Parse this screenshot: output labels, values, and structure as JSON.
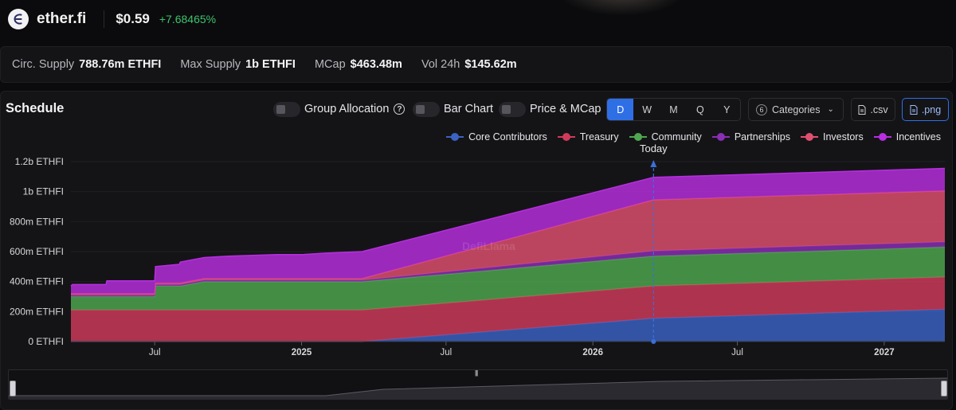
{
  "header": {
    "name": "ether.fi",
    "price": "$0.59",
    "change": "+7.68465%"
  },
  "stats": [
    {
      "label": "Circ. Supply",
      "value": "788.76m ETHFI"
    },
    {
      "label": "Max Supply",
      "value": "1b ETHFI"
    },
    {
      "label": "MCap",
      "value": "$463.48m"
    },
    {
      "label": "Vol 24h",
      "value": "$145.62m"
    }
  ],
  "controls": {
    "title": "Schedule",
    "group_allocation": "Group Allocation",
    "help_icon": "?",
    "bar_chart": "Bar Chart",
    "price_mcap": "Price & MCap",
    "periods": [
      "D",
      "W",
      "M",
      "Q",
      "Y"
    ],
    "active_period": "D",
    "categories_count": "6",
    "categories_label": "Categories",
    "csv_label": ".csv",
    "png_label": ".png"
  },
  "icons": {
    "logo": "etherfi-logo-icon",
    "file": "file-icon",
    "chevron": "chevron-down-icon"
  },
  "chart_data": {
    "type": "area",
    "stacked": true,
    "x_unit": "date",
    "x": [
      "2024-03-18",
      "2024-03-20",
      "2024-05-01",
      "2024-05-02",
      "2024-07-01",
      "2024-07-02",
      "2024-08-01",
      "2024-08-02",
      "2024-09-01",
      "2024-10-01",
      "2024-11-01",
      "2024-12-01",
      "2025-01-01",
      "2025-02-01",
      "2025-03-18",
      "2026-03-18",
      "2027-03-18"
    ],
    "series": [
      {
        "name": "Core Contributors",
        "color": "#3a63c4",
        "values": [
          0,
          0,
          0,
          0,
          0,
          0,
          0,
          0,
          0,
          0,
          0,
          0,
          0,
          0,
          0,
          155,
          215
        ]
      },
      {
        "name": "Treasury",
        "color": "#d13a5a",
        "values": [
          210,
          210,
          210,
          210,
          210,
          210,
          210,
          210,
          210,
          210,
          210,
          210,
          210,
          210,
          210,
          215,
          215
        ]
      },
      {
        "name": "Community",
        "color": "#4fa84f",
        "values": [
          90,
          90,
          90,
          90,
          90,
          160,
          160,
          160,
          190,
          190,
          190,
          190,
          190,
          190,
          190,
          200,
          200
        ]
      },
      {
        "name": "Partnerships",
        "color": "#8a2fb3",
        "values": [
          10,
          10,
          10,
          10,
          10,
          10,
          10,
          10,
          10,
          10,
          10,
          10,
          10,
          10,
          10,
          35,
          35
        ]
      },
      {
        "name": "Investors",
        "color": "#e0506e",
        "values": [
          10,
          10,
          10,
          10,
          10,
          10,
          10,
          10,
          10,
          10,
          10,
          10,
          10,
          10,
          10,
          340,
          340
        ]
      },
      {
        "name": "Incentives",
        "color": "#b82ee0",
        "values": [
          50,
          60,
          60,
          85,
          85,
          110,
          125,
          140,
          140,
          150,
          155,
          160,
          160,
          170,
          180,
          150,
          150
        ]
      }
    ],
    "y_ticks": [
      "0 ETHFI",
      "200m ETHFI",
      "400m ETHFI",
      "600m ETHFI",
      "800m ETHFI",
      "1b ETHFI",
      "1.2b ETHFI"
    ],
    "y_tick_values": [
      0,
      200,
      400,
      600,
      800,
      1000,
      1200
    ],
    "x_ticks": [
      {
        "date": "2024-07-01",
        "label": "Jul",
        "bold": false
      },
      {
        "date": "2025-01-01",
        "label": "2025",
        "bold": true
      },
      {
        "date": "2025-07-01",
        "label": "Jul",
        "bold": false
      },
      {
        "date": "2026-01-01",
        "label": "2026",
        "bold": true
      },
      {
        "date": "2026-07-01",
        "label": "Jul",
        "bold": false
      },
      {
        "date": "2027-01-01",
        "label": "2027",
        "bold": true
      }
    ],
    "xlim": [
      "2024-03-18",
      "2027-03-18"
    ],
    "ylim": [
      0,
      1200
    ],
    "today": {
      "date": "2026-03-18",
      "label": "Today"
    },
    "watermark": "DefiLlama",
    "legend_position": "top-right"
  }
}
